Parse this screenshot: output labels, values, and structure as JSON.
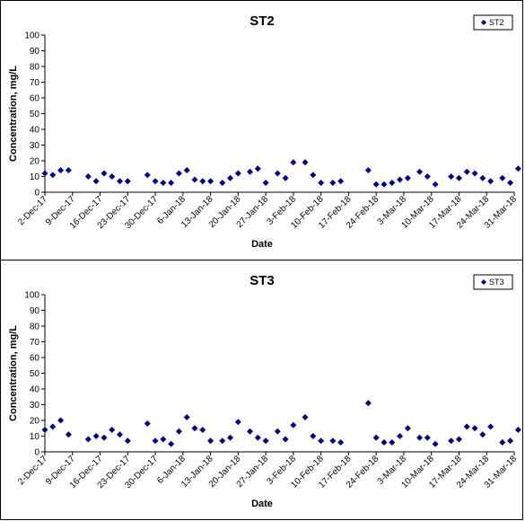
{
  "chart_data": [
    {
      "type": "scatter",
      "title": "ST2",
      "xlabel": "Date",
      "ylabel": "Concentration, mg/L",
      "ylim": [
        0,
        100
      ],
      "yticks": [
        0,
        10,
        20,
        30,
        40,
        50,
        60,
        70,
        80,
        90,
        100
      ],
      "xlim": [
        "2017-12-02",
        "2018-03-31"
      ],
      "xtick_labels": [
        "2-Dec-17",
        "9-Dec-17",
        "16-Dec-17",
        "23-Dec-17",
        "30-Dec-17",
        "6-Jan-18",
        "13-Jan-18",
        "20-Jan-18",
        "27-Jan-18",
        "3-Feb-18",
        "10-Feb-18",
        "17-Feb-18",
        "24-Feb-18",
        "3-Mar-18",
        "10-Mar-18",
        "17-Mar-18",
        "24-Mar-18",
        "31-Mar-18"
      ],
      "grid": false,
      "legend_position": "top-right",
      "marker_color": "#00007f",
      "series": [
        {
          "name": "ST2",
          "points": [
            {
              "x": "2017-12-02",
              "y": 12
            },
            {
              "x": "2017-12-04",
              "y": 11
            },
            {
              "x": "2017-12-06",
              "y": 14
            },
            {
              "x": "2017-12-08",
              "y": 14
            },
            {
              "x": "2017-12-13",
              "y": 10
            },
            {
              "x": "2017-12-15",
              "y": 7
            },
            {
              "x": "2017-12-17",
              "y": 12
            },
            {
              "x": "2017-12-19",
              "y": 10
            },
            {
              "x": "2017-12-21",
              "y": 7
            },
            {
              "x": "2017-12-23",
              "y": 7
            },
            {
              "x": "2017-12-28",
              "y": 11
            },
            {
              "x": "2017-12-30",
              "y": 7
            },
            {
              "x": "2018-01-01",
              "y": 6
            },
            {
              "x": "2018-01-03",
              "y": 6
            },
            {
              "x": "2018-01-05",
              "y": 12
            },
            {
              "x": "2018-01-07",
              "y": 14
            },
            {
              "x": "2018-01-09",
              "y": 8
            },
            {
              "x": "2018-01-11",
              "y": 7
            },
            {
              "x": "2018-01-13",
              "y": 7
            },
            {
              "x": "2018-01-16",
              "y": 6
            },
            {
              "x": "2018-01-18",
              "y": 9
            },
            {
              "x": "2018-01-20",
              "y": 12
            },
            {
              "x": "2018-01-23",
              "y": 13
            },
            {
              "x": "2018-01-25",
              "y": 15
            },
            {
              "x": "2018-01-27",
              "y": 6
            },
            {
              "x": "2018-01-30",
              "y": 12
            },
            {
              "x": "2018-02-01",
              "y": 9
            },
            {
              "x": "2018-02-03",
              "y": 19
            },
            {
              "x": "2018-02-06",
              "y": 19
            },
            {
              "x": "2018-02-08",
              "y": 11
            },
            {
              "x": "2018-02-10",
              "y": 6
            },
            {
              "x": "2018-02-13",
              "y": 6
            },
            {
              "x": "2018-02-15",
              "y": 7
            },
            {
              "x": "2018-02-22",
              "y": 14
            },
            {
              "x": "2018-02-24",
              "y": 5
            },
            {
              "x": "2018-02-26",
              "y": 5
            },
            {
              "x": "2018-02-28",
              "y": 6
            },
            {
              "x": "2018-03-02",
              "y": 8
            },
            {
              "x": "2018-03-04",
              "y": 9
            },
            {
              "x": "2018-03-07",
              "y": 13
            },
            {
              "x": "2018-03-09",
              "y": 10
            },
            {
              "x": "2018-03-11",
              "y": 5
            },
            {
              "x": "2018-03-15",
              "y": 10
            },
            {
              "x": "2018-03-17",
              "y": 9
            },
            {
              "x": "2018-03-19",
              "y": 13
            },
            {
              "x": "2018-03-21",
              "y": 12
            },
            {
              "x": "2018-03-23",
              "y": 9
            },
            {
              "x": "2018-03-25",
              "y": 7
            },
            {
              "x": "2018-03-28",
              "y": 9
            },
            {
              "x": "2018-03-30",
              "y": 6
            },
            {
              "x": "2018-04-01",
              "y": 15
            }
          ]
        }
      ]
    },
    {
      "type": "scatter",
      "title": "ST3",
      "xlabel": "Date",
      "ylabel": "Concentration, mg/L",
      "ylim": [
        0,
        100
      ],
      "yticks": [
        0,
        10,
        20,
        30,
        40,
        50,
        60,
        70,
        80,
        90,
        100
      ],
      "xlim": [
        "2017-12-02",
        "2018-03-31"
      ],
      "xtick_labels": [
        "2-Dec-17",
        "9-Dec-17",
        "16-Dec-17",
        "23-Dec-17",
        "30-Dec-17",
        "6-Jan-18",
        "13-Jan-18",
        "20-Jan-18",
        "27-Jan-18",
        "3-Feb-18",
        "10-Feb-18",
        "17-Feb-18",
        "24-Feb-18",
        "3-Mar-18",
        "10-Mar-18",
        "17-Mar-18",
        "24-Mar-18",
        "31-Mar-18"
      ],
      "grid": false,
      "legend_position": "top-right",
      "marker_color": "#00007f",
      "series": [
        {
          "name": "ST3",
          "points": [
            {
              "x": "2017-12-02",
              "y": 14
            },
            {
              "x": "2017-12-04",
              "y": 16
            },
            {
              "x": "2017-12-06",
              "y": 20
            },
            {
              "x": "2017-12-08",
              "y": 11
            },
            {
              "x": "2017-12-13",
              "y": 8
            },
            {
              "x": "2017-12-15",
              "y": 10
            },
            {
              "x": "2017-12-17",
              "y": 9
            },
            {
              "x": "2017-12-19",
              "y": 14
            },
            {
              "x": "2017-12-21",
              "y": 11
            },
            {
              "x": "2017-12-23",
              "y": 7
            },
            {
              "x": "2017-12-28",
              "y": 18
            },
            {
              "x": "2017-12-30",
              "y": 7
            },
            {
              "x": "2018-01-01",
              "y": 8
            },
            {
              "x": "2018-01-03",
              "y": 5
            },
            {
              "x": "2018-01-05",
              "y": 13
            },
            {
              "x": "2018-01-07",
              "y": 22
            },
            {
              "x": "2018-01-09",
              "y": 15
            },
            {
              "x": "2018-01-11",
              "y": 14
            },
            {
              "x": "2018-01-13",
              "y": 7
            },
            {
              "x": "2018-01-16",
              "y": 7
            },
            {
              "x": "2018-01-18",
              "y": 9
            },
            {
              "x": "2018-01-20",
              "y": 19
            },
            {
              "x": "2018-01-23",
              "y": 13
            },
            {
              "x": "2018-01-25",
              "y": 9
            },
            {
              "x": "2018-01-27",
              "y": 7
            },
            {
              "x": "2018-01-30",
              "y": 13
            },
            {
              "x": "2018-02-01",
              "y": 8
            },
            {
              "x": "2018-02-03",
              "y": 17
            },
            {
              "x": "2018-02-06",
              "y": 22
            },
            {
              "x": "2018-02-08",
              "y": 10
            },
            {
              "x": "2018-02-10",
              "y": 7
            },
            {
              "x": "2018-02-13",
              "y": 7
            },
            {
              "x": "2018-02-15",
              "y": 6
            },
            {
              "x": "2018-02-22",
              "y": 31
            },
            {
              "x": "2018-02-24",
              "y": 9
            },
            {
              "x": "2018-02-26",
              "y": 6
            },
            {
              "x": "2018-02-28",
              "y": 6
            },
            {
              "x": "2018-03-02",
              "y": 10
            },
            {
              "x": "2018-03-04",
              "y": 15
            },
            {
              "x": "2018-03-07",
              "y": 9
            },
            {
              "x": "2018-03-09",
              "y": 9
            },
            {
              "x": "2018-03-11",
              "y": 5
            },
            {
              "x": "2018-03-15",
              "y": 7
            },
            {
              "x": "2018-03-17",
              "y": 8
            },
            {
              "x": "2018-03-19",
              "y": 16
            },
            {
              "x": "2018-03-21",
              "y": 15
            },
            {
              "x": "2018-03-23",
              "y": 11
            },
            {
              "x": "2018-03-25",
              "y": 16
            },
            {
              "x": "2018-03-28",
              "y": 6
            },
            {
              "x": "2018-03-30",
              "y": 7
            },
            {
              "x": "2018-04-01",
              "y": 14
            }
          ]
        }
      ]
    }
  ]
}
